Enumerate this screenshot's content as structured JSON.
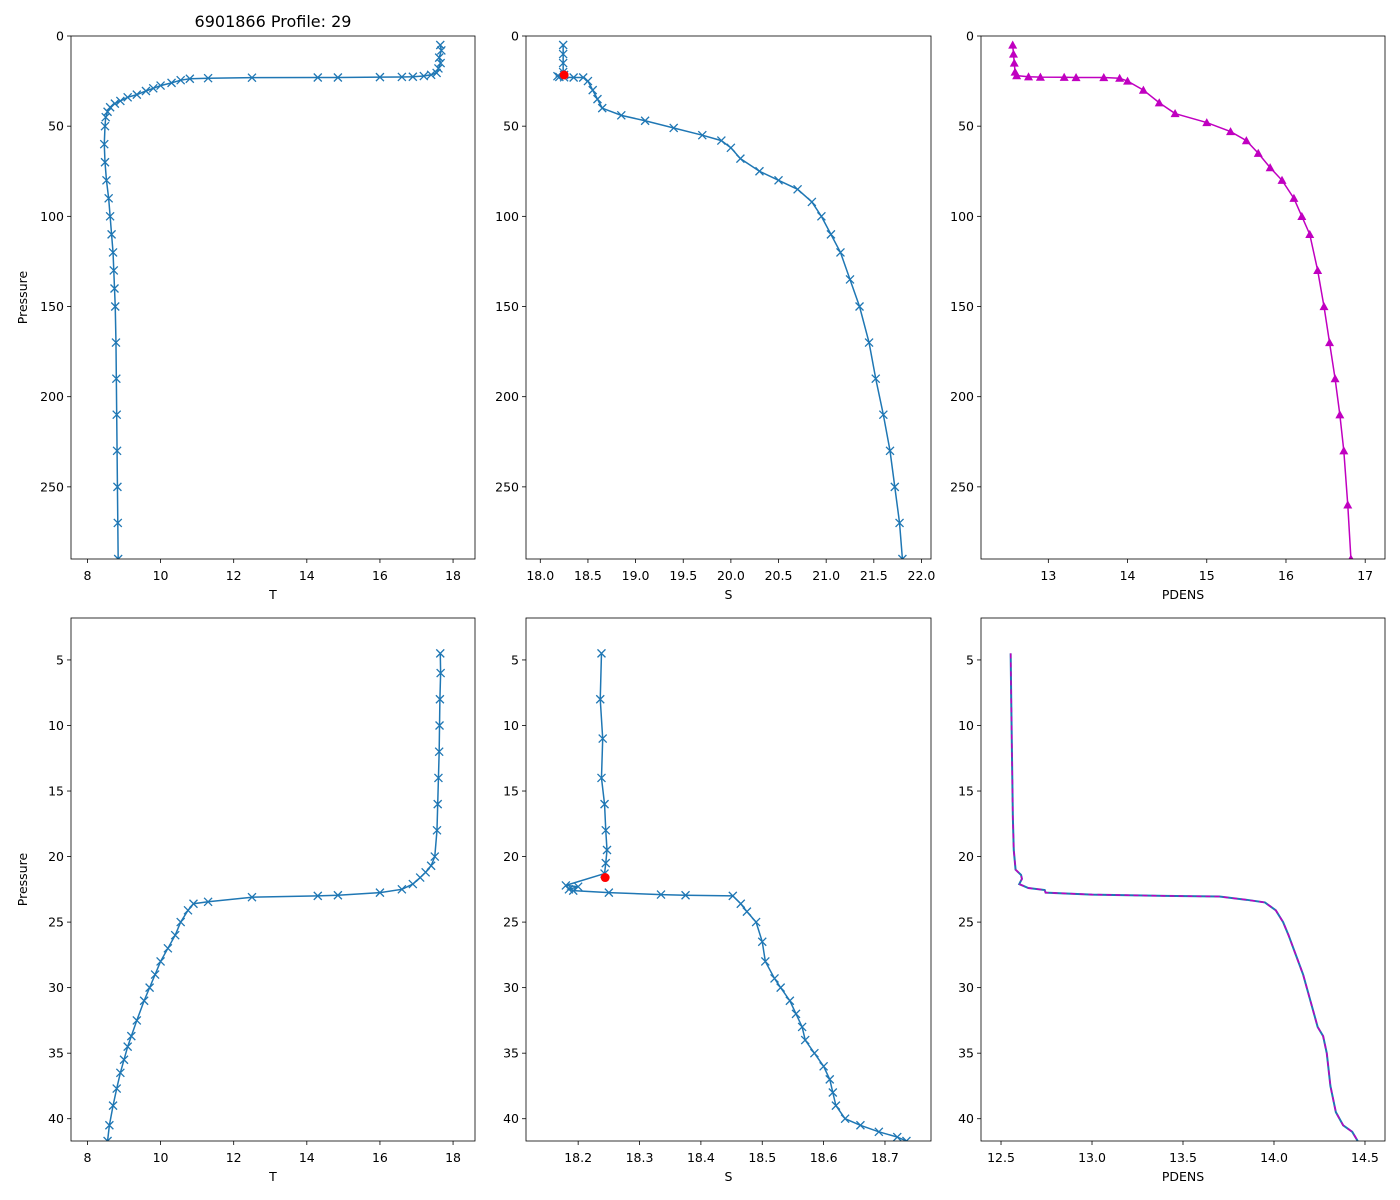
{
  "figure_title": "6901866 Profile: 29",
  "chart_data": [
    {
      "id": "top-temperature",
      "type": "line",
      "xlabel": "T",
      "ylabel": "Pressure",
      "xlim": [
        7.55,
        18.6
      ],
      "ylim": [
        290,
        0
      ],
      "xticks": [
        8,
        10,
        12,
        14,
        16,
        18
      ],
      "yticks": [
        0,
        50,
        100,
        150,
        200,
        250
      ],
      "series": [
        {
          "name": "T",
          "color": "#1f77b4",
          "marker": "x",
          "x": [
            17.65,
            17.68,
            17.62,
            17.66,
            17.6,
            17.55,
            17.4,
            17.2,
            16.9,
            16.6,
            16.0,
            14.85,
            14.3,
            12.5,
            11.3,
            10.8,
            10.55,
            10.3,
            10.0,
            9.8,
            9.6,
            9.35,
            9.1,
            8.9,
            8.75,
            8.62,
            8.55,
            8.5,
            8.48,
            8.46,
            8.48,
            8.52,
            8.58,
            8.62,
            8.66,
            8.7,
            8.72,
            8.74,
            8.76,
            8.78,
            8.79,
            8.8,
            8.81,
            8.82,
            8.83,
            8.84
          ],
          "y": [
            5,
            8,
            12,
            15,
            18,
            20.5,
            21.5,
            22.2,
            22.6,
            22.7,
            22.8,
            23.0,
            23.0,
            23.1,
            23.4,
            23.7,
            24.5,
            26,
            27.5,
            29,
            30.5,
            32.5,
            34,
            36,
            37.5,
            39.5,
            42,
            45,
            50,
            60,
            70,
            80,
            90,
            100,
            110,
            120,
            130,
            140,
            150,
            170,
            190,
            210,
            230,
            250,
            270,
            290
          ]
        }
      ]
    },
    {
      "id": "top-salinity",
      "type": "line",
      "xlabel": "S",
      "ylabel": "",
      "xlim": [
        17.85,
        22.1
      ],
      "ylim": [
        290,
        0
      ],
      "xticks": [
        18.0,
        18.5,
        19.0,
        19.5,
        20.0,
        20.5,
        21.0,
        21.5,
        22.0
      ],
      "yticks": [
        0,
        50,
        100,
        150,
        200,
        250
      ],
      "series": [
        {
          "name": "S",
          "color": "#1f77b4",
          "marker": "x",
          "x": [
            18.24,
            18.24,
            18.24,
            18.24,
            18.25,
            18.18,
            18.2,
            18.25,
            18.35,
            18.45,
            18.5,
            18.55,
            18.6,
            18.65,
            18.85,
            19.1,
            19.4,
            19.7,
            19.9,
            20.0,
            20.1,
            20.3,
            20.5,
            20.7,
            20.85,
            20.95,
            21.05,
            21.15,
            21.25,
            21.35,
            21.45,
            21.52,
            21.6,
            21.67,
            21.72,
            21.77,
            21.8
          ],
          "y": [
            5,
            10,
            15,
            20,
            21.6,
            22.3,
            22.7,
            22.9,
            23,
            23,
            25,
            30,
            35,
            40,
            44,
            47,
            51,
            55,
            58,
            62,
            68,
            75,
            80,
            85,
            92,
            100,
            110,
            120,
            135,
            150,
            170,
            190,
            210,
            230,
            250,
            270,
            290
          ]
        },
        {
          "name": "MLD salinity",
          "color": "#ff0000",
          "marker": "o",
          "x": [
            18.25
          ],
          "y": [
            21.6
          ]
        }
      ]
    },
    {
      "id": "top-density",
      "type": "line",
      "xlabel": "PDENS",
      "ylabel": "",
      "xlim": [
        12.15,
        17.25
      ],
      "ylim": [
        290,
        0
      ],
      "xticks": [
        13,
        14,
        15,
        16,
        17
      ],
      "yticks": [
        0,
        50,
        100,
        150,
        200,
        250
      ],
      "series": [
        {
          "name": "PDENS",
          "color": "#c000c0",
          "marker": "^",
          "x": [
            12.55,
            12.56,
            12.57,
            12.58,
            12.6,
            12.75,
            12.9,
            13.2,
            13.35,
            13.7,
            13.9,
            14.0,
            14.2,
            14.4,
            14.6,
            15.0,
            15.3,
            15.5,
            15.65,
            15.8,
            15.95,
            16.1,
            16.2,
            16.3,
            16.4,
            16.48,
            16.55,
            16.62,
            16.68,
            16.73,
            16.78,
            16.82
          ],
          "y": [
            5,
            10,
            15,
            20,
            22,
            22.6,
            22.8,
            22.9,
            23,
            23,
            23.4,
            25,
            30,
            37,
            43,
            48,
            53,
            58,
            65,
            73,
            80,
            90,
            100,
            110,
            130,
            150,
            170,
            190,
            210,
            230,
            260,
            290
          ]
        }
      ]
    },
    {
      "id": "bottom-temperature",
      "type": "line",
      "xlabel": "T",
      "ylabel": "Pressure",
      "xlim": [
        7.55,
        18.6
      ],
      "ylim": [
        41.7,
        1.8
      ],
      "xticks": [
        8,
        10,
        12,
        14,
        16,
        18
      ],
      "yticks": [
        5,
        10,
        15,
        20,
        25,
        30,
        35,
        40
      ],
      "series": [
        {
          "name": "T",
          "color": "#1f77b4",
          "marker": "x",
          "x": [
            17.65,
            17.66,
            17.64,
            17.63,
            17.62,
            17.6,
            17.58,
            17.56,
            17.5,
            17.4,
            17.25,
            17.1,
            16.9,
            16.6,
            16.0,
            14.85,
            14.3,
            12.5,
            11.3,
            10.9,
            10.75,
            10.55,
            10.4,
            10.2,
            10.0,
            9.85,
            9.7,
            9.55,
            9.35,
            9.2,
            9.1,
            9.0,
            8.9,
            8.8,
            8.7,
            8.6,
            8.55
          ],
          "y": [
            4.5,
            6,
            8,
            10,
            12,
            14,
            16,
            18,
            20,
            20.7,
            21.2,
            21.6,
            22.1,
            22.5,
            22.75,
            22.95,
            23.0,
            23.1,
            23.45,
            23.6,
            24.1,
            25,
            26,
            27,
            28,
            29,
            30,
            31,
            32.5,
            33.7,
            34.5,
            35.5,
            36.5,
            37.7,
            39,
            40.5,
            41.7
          ]
        }
      ]
    },
    {
      "id": "bottom-salinity",
      "type": "line",
      "xlabel": "S",
      "ylabel": "",
      "xlim": [
        18.115,
        18.775
      ],
      "ylim": [
        41.7,
        1.8
      ],
      "xticks": [
        18.2,
        18.3,
        18.4,
        18.5,
        18.6,
        18.7
      ],
      "yticks": [
        5,
        10,
        15,
        20,
        25,
        30,
        35,
        40
      ],
      "series": [
        {
          "name": "S",
          "color": "#1f77b4",
          "marker": "x",
          "x": [
            18.238,
            18.236,
            18.24,
            18.238,
            18.243,
            18.245,
            18.247,
            18.245,
            18.243,
            18.18,
            18.2,
            18.185,
            18.192,
            18.25,
            18.335,
            18.375,
            18.452,
            18.465,
            18.475,
            18.49,
            18.5,
            18.505,
            18.52,
            18.53,
            18.545,
            18.555,
            18.565,
            18.57,
            18.585,
            18.6,
            18.61,
            18.615,
            18.62,
            18.635,
            18.66,
            18.69,
            18.72,
            18.735
          ],
          "y": [
            4.5,
            8,
            11,
            14,
            16,
            18,
            19.5,
            20.5,
            21.3,
            22.2,
            22.3,
            22.5,
            22.6,
            22.75,
            22.9,
            22.95,
            23.0,
            23.6,
            24.2,
            25,
            26.5,
            28,
            29.3,
            30,
            31,
            32,
            33,
            34,
            35,
            36,
            37,
            38,
            39,
            40,
            40.5,
            41,
            41.4,
            41.7
          ]
        },
        {
          "name": "MLD salinity",
          "color": "#ff0000",
          "marker": "o",
          "x": [
            18.244
          ],
          "y": [
            21.6
          ]
        }
      ]
    },
    {
      "id": "bottom-density",
      "type": "line",
      "xlabel": "PDENS",
      "ylabel": "",
      "xlim": [
        12.39,
        14.61
      ],
      "ylim": [
        41.7,
        1.8
      ],
      "xticks": [
        12.5,
        13.0,
        13.5,
        14.0,
        14.5
      ],
      "yticks": [
        5,
        10,
        15,
        20,
        25,
        30,
        35,
        40
      ],
      "series": [
        {
          "name": "PDENS",
          "color": "#c000c0",
          "secondary_color": "#1f77b4",
          "marker": "none",
          "x": [
            12.553,
            12.556,
            12.559,
            12.562,
            12.565,
            12.57,
            12.58,
            12.61,
            12.615,
            12.6,
            12.65,
            12.74,
            12.745,
            13.0,
            13.4,
            13.7,
            13.85,
            13.95,
            14.01,
            14.05,
            14.08,
            14.12,
            14.16,
            14.2,
            14.24,
            14.27,
            14.29,
            14.31,
            14.34,
            14.38,
            14.43,
            14.46
          ],
          "y": [
            4.5,
            8,
            11,
            14,
            17,
            19.5,
            21,
            21.4,
            21.7,
            22.1,
            22.4,
            22.55,
            22.75,
            22.9,
            23.0,
            23.05,
            23.3,
            23.5,
            24.1,
            25,
            26,
            27.5,
            29,
            31,
            33,
            33.7,
            35,
            37.5,
            39.5,
            40.5,
            41,
            41.7
          ]
        }
      ]
    }
  ]
}
